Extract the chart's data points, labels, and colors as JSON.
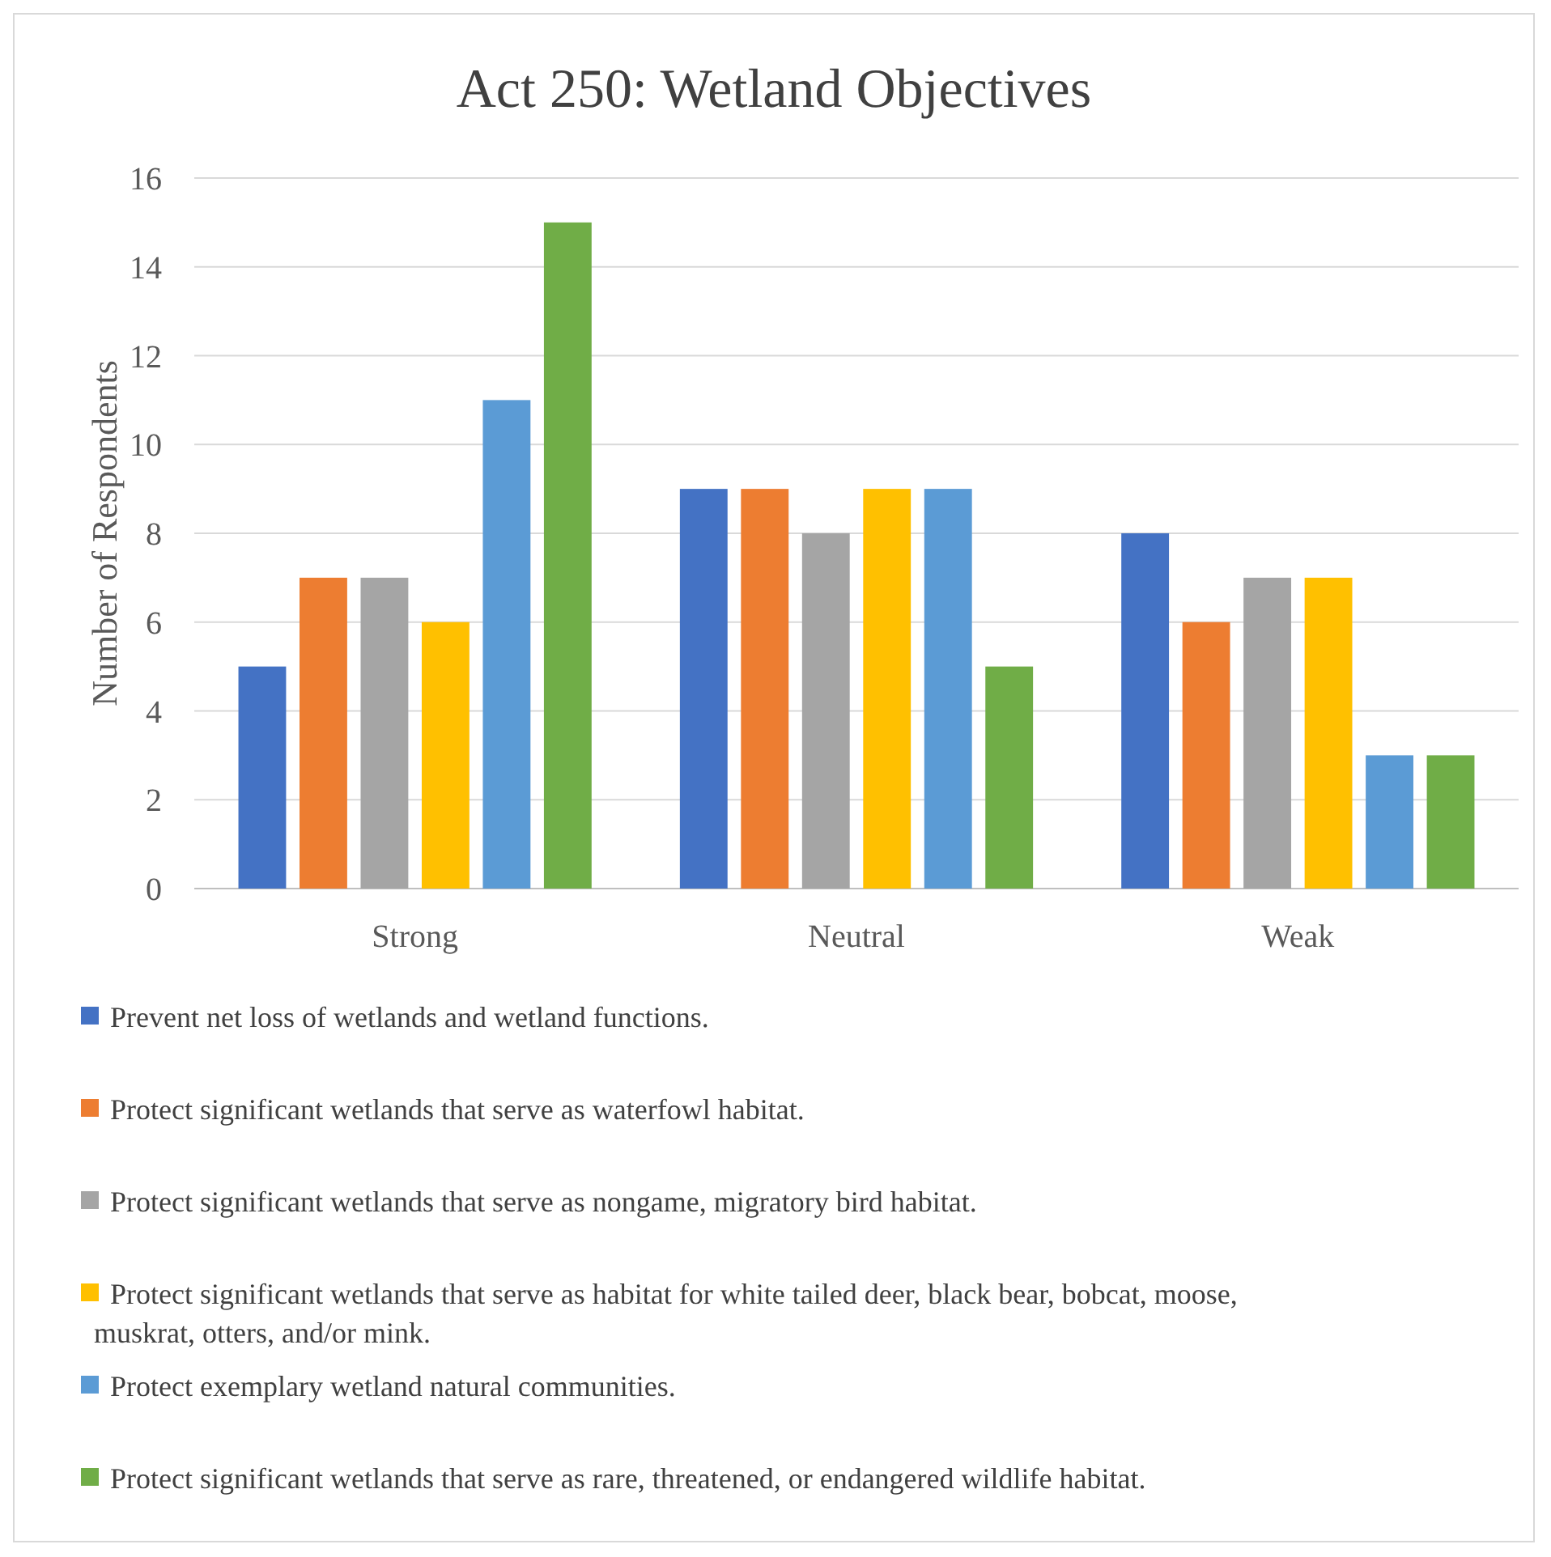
{
  "chart_data": {
    "type": "bar",
    "title": "Act 250: Wetland Objectives",
    "ylabel": "Number of Respondents",
    "categories": [
      "Strong",
      "Neutral",
      "Weak"
    ],
    "series": [
      {
        "name": "Prevent net loss of wetlands and wetland functions.",
        "color": "#4472c4",
        "values": [
          5,
          9,
          8
        ]
      },
      {
        "name": "Protect significant wetlands that serve as waterfowl habitat.",
        "color": "#ed7d31",
        "values": [
          7,
          9,
          6
        ]
      },
      {
        "name": "Protect significant wetlands that serve as nongame, migratory bird habitat.",
        "color": "#a5a5a5",
        "values": [
          7,
          8,
          7
        ]
      },
      {
        "name": "Protect significant wetlands that serve as habitat for white tailed deer, black bear, bobcat, moose, muskrat, otters, and/or mink.",
        "color": "#ffc000",
        "values": [
          6,
          9,
          7
        ]
      },
      {
        "name": "Protect exemplary wetland natural communities.",
        "color": "#5b9bd5",
        "values": [
          11,
          9,
          3
        ]
      },
      {
        "name": "Protect significant wetlands that serve as rare, threatened, or endangered wildlife habitat.",
        "color": "#70ad47",
        "values": [
          15,
          5,
          3
        ]
      }
    ],
    "ylim": [
      0,
      16
    ],
    "yticks": [
      0,
      2,
      4,
      6,
      8,
      10,
      12,
      14,
      16
    ],
    "grid": "y",
    "legend": "bottom"
  }
}
